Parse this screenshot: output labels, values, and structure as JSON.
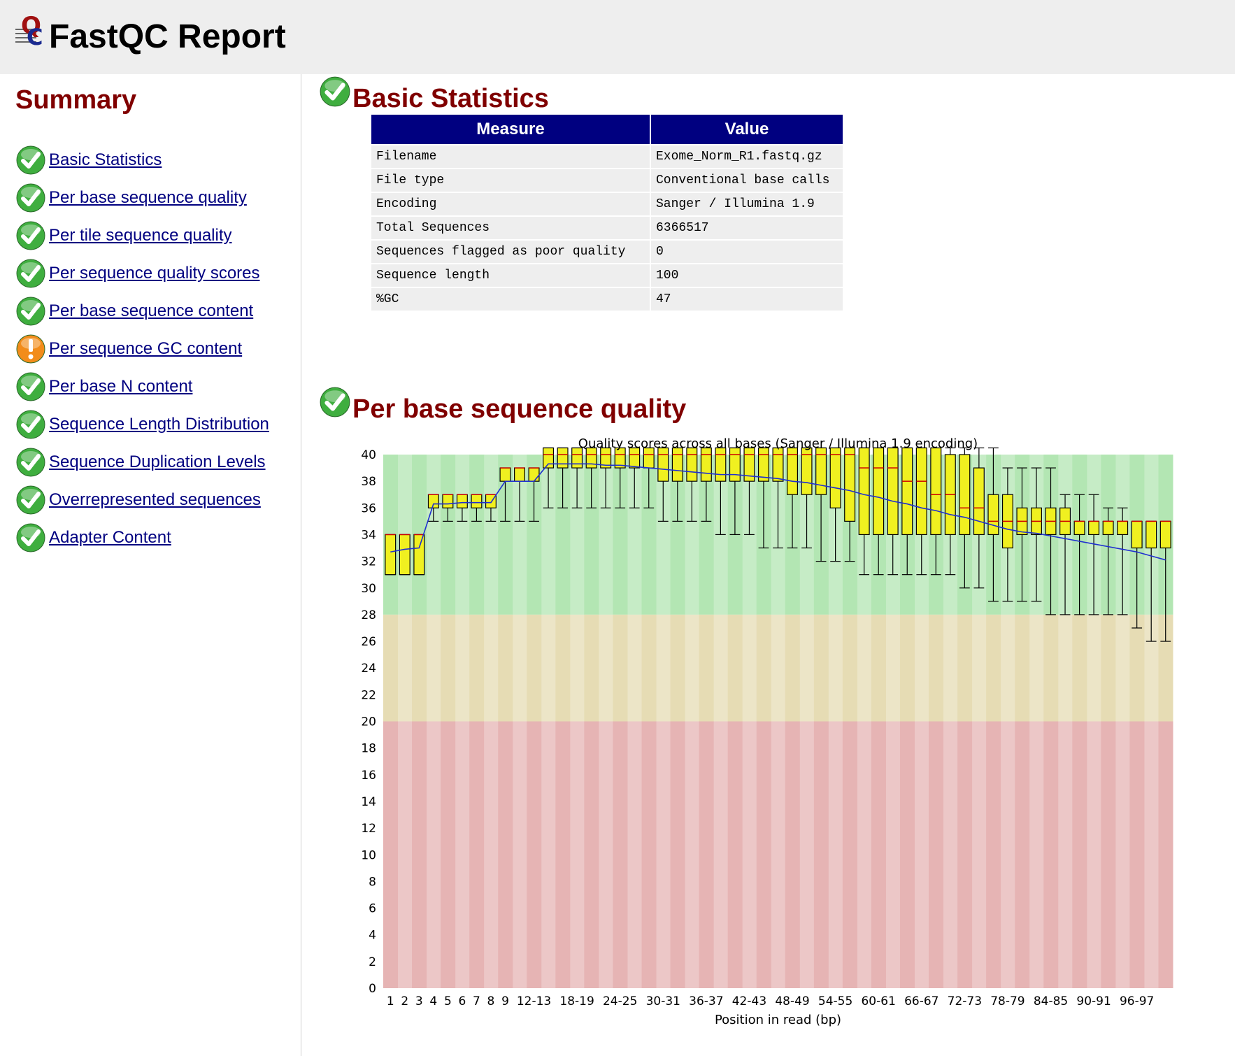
{
  "header": {
    "title": "FastQC Report",
    "logo_icon": "fastqc-logo-icon"
  },
  "sidebar": {
    "title": "Summary",
    "modules": [
      {
        "label": "Basic Statistics",
        "status": "pass"
      },
      {
        "label": "Per base sequence quality",
        "status": "pass"
      },
      {
        "label": "Per tile sequence quality",
        "status": "pass"
      },
      {
        "label": "Per sequence quality scores",
        "status": "pass"
      },
      {
        "label": "Per base sequence content",
        "status": "pass"
      },
      {
        "label": "Per sequence GC content",
        "status": "warn"
      },
      {
        "label": "Per base N content",
        "status": "pass"
      },
      {
        "label": "Sequence Length Distribution",
        "status": "pass"
      },
      {
        "label": "Sequence Duplication Levels",
        "status": "pass"
      },
      {
        "label": "Overrepresented sequences",
        "status": "pass"
      },
      {
        "label": "Adapter Content",
        "status": "pass"
      }
    ]
  },
  "basic_statistics": {
    "title": "Basic Statistics",
    "status": "pass",
    "columns": [
      "Measure",
      "Value"
    ],
    "rows": [
      [
        "Filename",
        "Exome_Norm_R1.fastq.gz"
      ],
      [
        "File type",
        "Conventional base calls"
      ],
      [
        "Encoding",
        "Sanger / Illumina 1.9"
      ],
      [
        "Total Sequences",
        "6366517"
      ],
      [
        "Sequences flagged as poor quality",
        "0"
      ],
      [
        "Sequence length",
        "100"
      ],
      [
        "%GC",
        "47"
      ]
    ]
  },
  "per_base_quality": {
    "title": "Per base sequence quality",
    "status": "pass"
  },
  "colors": {
    "pass_green": "#3fae3f",
    "warn_orange": "#f28c1a",
    "title_red": "#800000",
    "link_blue": "#000080",
    "table_header": "#000080",
    "box_fill": "#f0f020",
    "median": "#cc0000",
    "mean_line": "#1f2fd0"
  },
  "chart_data": {
    "type": "boxplot",
    "title": "Quality scores across all bases (Sanger / Illumina 1.9 encoding)",
    "xlabel": "Position in read (bp)",
    "ylabel": "",
    "ylim": [
      0,
      40
    ],
    "yticks": [
      "0",
      "2",
      "4",
      "6",
      "8",
      "10",
      "12",
      "14",
      "16",
      "18",
      "20",
      "22",
      "24",
      "26",
      "28",
      "30",
      "32",
      "34",
      "36",
      "38",
      "40"
    ],
    "zones": [
      {
        "from": 28,
        "to": 40,
        "meaning": "good",
        "color": "#b3e6b3"
      },
      {
        "from": 20,
        "to": 28,
        "meaning": "reasonable",
        "color": "#e6dcb4"
      },
      {
        "from": 0,
        "to": 20,
        "meaning": "poor",
        "color": "#e6b4b4"
      }
    ],
    "categories": [
      "1",
      "2",
      "3",
      "4",
      "5",
      "6",
      "7",
      "8",
      "9",
      "10-11",
      "12-13",
      "14-15",
      "16-17",
      "18-19",
      "20-21",
      "22-23",
      "24-25",
      "26-27",
      "28-29",
      "30-31",
      "32-33",
      "34-35",
      "36-37",
      "38-39",
      "40-41",
      "42-43",
      "44-45",
      "46-47",
      "48-49",
      "50-51",
      "52-53",
      "54-55",
      "56-57",
      "58-59",
      "60-61",
      "62-63",
      "64-65",
      "66-67",
      "68-69",
      "70-71",
      "72-73",
      "74-75",
      "76-77",
      "78-79",
      "80-81",
      "82-83",
      "84-85",
      "86-87",
      "88-89",
      "90-91",
      "92-93",
      "94-95",
      "96-97",
      "98-99",
      "100"
    ],
    "x_tick_labels": [
      "1",
      "2",
      "3",
      "4",
      "5",
      "6",
      "7",
      "8",
      "9",
      "12-13",
      "18-19",
      "24-25",
      "30-31",
      "36-37",
      "42-43",
      "48-49",
      "54-55",
      "60-61",
      "66-67",
      "72-73",
      "78-79",
      "84-85",
      "90-91",
      "96-97"
    ],
    "series": [
      {
        "name": "lower_whisker",
        "values": [
          31,
          31,
          31,
          35,
          35,
          35,
          35,
          35,
          35,
          35,
          35,
          36,
          36,
          36,
          36,
          36,
          36,
          36,
          36,
          35,
          35,
          35,
          35,
          34,
          34,
          34,
          33,
          33,
          33,
          33,
          32,
          32,
          32,
          31,
          31,
          31,
          31,
          31,
          31,
          31,
          30,
          30,
          29,
          29,
          29,
          29,
          28,
          28,
          28,
          28,
          28,
          28,
          27,
          26,
          26
        ]
      },
      {
        "name": "lower_quartile",
        "values": [
          31,
          31,
          31,
          36,
          36,
          36,
          36,
          36,
          38,
          38,
          38,
          39,
          39,
          39,
          39,
          39,
          39,
          39,
          39,
          38,
          38,
          38,
          38,
          38,
          38,
          38,
          38,
          38,
          37,
          37,
          37,
          36,
          35,
          34,
          34,
          34,
          34,
          34,
          34,
          34,
          34,
          34,
          34,
          33,
          34,
          34,
          34,
          34,
          34,
          34,
          34,
          34,
          33,
          33,
          33
        ]
      },
      {
        "name": "median",
        "values": [
          34,
          34,
          34,
          37,
          37,
          37,
          37,
          37,
          39,
          39,
          39,
          40,
          40,
          40,
          40,
          40,
          40,
          40,
          40,
          40,
          40,
          40,
          40,
          40,
          40,
          40,
          40,
          40,
          40,
          40,
          40,
          40,
          40,
          39,
          39,
          39,
          38,
          38,
          37,
          37,
          36,
          36,
          35,
          35,
          35,
          35,
          35,
          35,
          35,
          35,
          35,
          35,
          35,
          35,
          35
        ]
      },
      {
        "name": "upper_quartile",
        "values": [
          34,
          34,
          34,
          37,
          37,
          37,
          37,
          37,
          39,
          39,
          39,
          41,
          41,
          41,
          41,
          41,
          41,
          41,
          41,
          41,
          41,
          41,
          41,
          41,
          41,
          41,
          41,
          41,
          41,
          41,
          41,
          41,
          41,
          41,
          41,
          41,
          41,
          41,
          41,
          40,
          40,
          39,
          37,
          37,
          36,
          36,
          36,
          36,
          35,
          35,
          35,
          35,
          35,
          35,
          35
        ]
      },
      {
        "name": "upper_whisker",
        "values": [
          34,
          34,
          34,
          37,
          37,
          37,
          37,
          37,
          39,
          39,
          39,
          41,
          41,
          41,
          41,
          41,
          41,
          41,
          41,
          41,
          41,
          41,
          41,
          41,
          41,
          41,
          41,
          41,
          41,
          41,
          41,
          41,
          41,
          41,
          41,
          41,
          41,
          41,
          41,
          41,
          41,
          41,
          41,
          39,
          39,
          39,
          39,
          37,
          37,
          37,
          36,
          36,
          35,
          35,
          35
        ]
      },
      {
        "name": "mean",
        "values": [
          32.7,
          32.9,
          33.0,
          36.3,
          36.3,
          36.4,
          36.4,
          36.4,
          38.0,
          38.0,
          38.0,
          39.3,
          39.3,
          39.3,
          39.3,
          39.2,
          39.2,
          39.1,
          39.0,
          38.9,
          38.8,
          38.7,
          38.6,
          38.5,
          38.5,
          38.4,
          38.3,
          38.2,
          38.0,
          37.9,
          37.7,
          37.5,
          37.3,
          37.0,
          36.8,
          36.5,
          36.3,
          36.0,
          35.8,
          35.5,
          35.3,
          35.0,
          34.7,
          34.4,
          34.2,
          34.1,
          33.9,
          33.7,
          33.5,
          33.3,
          33.1,
          32.9,
          32.7,
          32.4,
          32.1
        ]
      }
    ]
  }
}
